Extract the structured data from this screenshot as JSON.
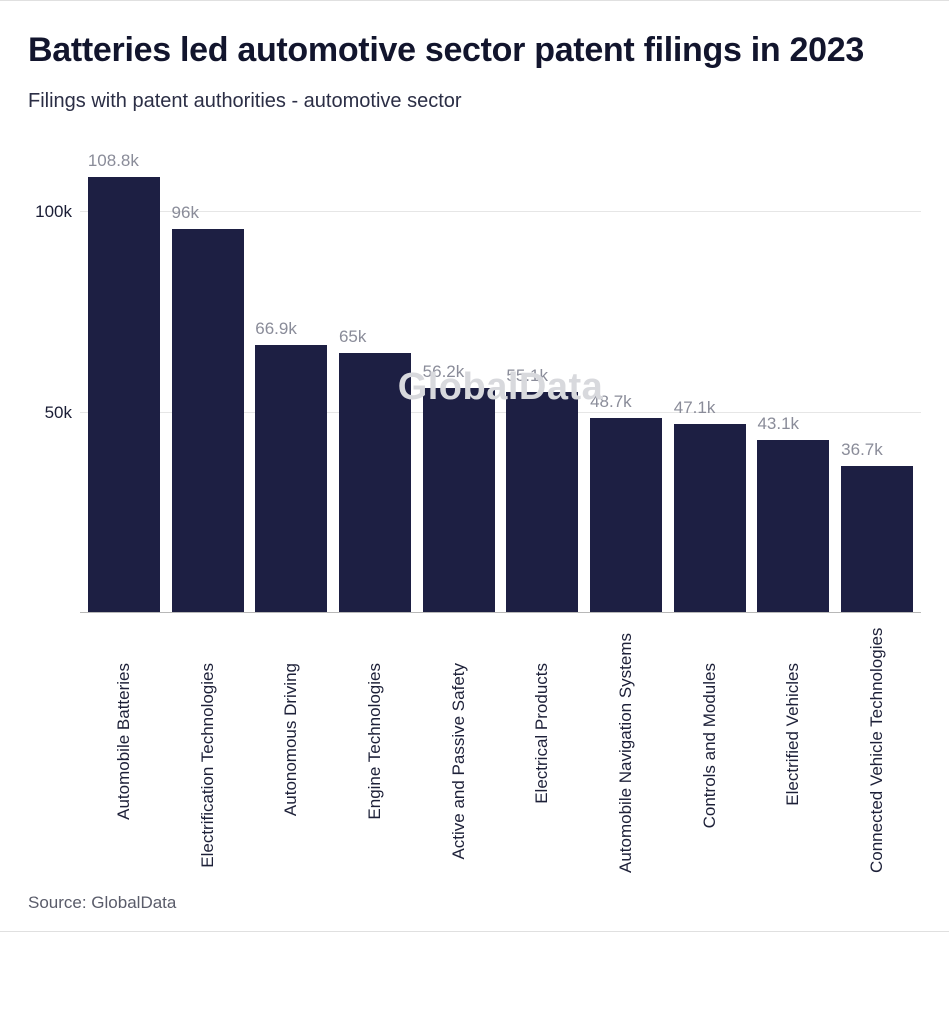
{
  "title": "Batteries led automotive sector  patent filings in 2023",
  "subtitle": "Filings with patent authorities - automotive sector",
  "source": "Source: GlobalData",
  "watermark": "GlobalData",
  "chart": {
    "type": "bar",
    "bar_color": "#1d1f43",
    "background_color": "#ffffff",
    "grid_color": "#e6e6e6",
    "baseline_color": "#b8b8b8",
    "value_label_color": "#8a8c99",
    "axis_label_color": "#1a1d35",
    "title_color": "#12152d",
    "title_fontsize": 34,
    "subtitle_fontsize": 20,
    "axis_fontsize": 17,
    "ymax": 115,
    "yticks": [
      {
        "value": 50,
        "label": "50k"
      },
      {
        "value": 100,
        "label": "100k"
      }
    ],
    "categories": [
      "Automobile Batteries",
      "Electrification Technologies",
      "Autonomous Driving",
      "Engine Technologies",
      "Active and Passive Safety",
      "Electrical Products",
      "Automobile Navigation Systems",
      "Controls and Modules",
      "Electrified Vehicles",
      "Connected Vehicle Technologies"
    ],
    "values": [
      108.8,
      96,
      66.9,
      65,
      56.2,
      55.1,
      48.7,
      47.1,
      43.1,
      36.7
    ],
    "value_labels": [
      "108.8k",
      "96k",
      "66.9k",
      "65k",
      "56.2k",
      "55.1k",
      "48.7k",
      "47.1k",
      "43.1k",
      "36.7k"
    ]
  }
}
